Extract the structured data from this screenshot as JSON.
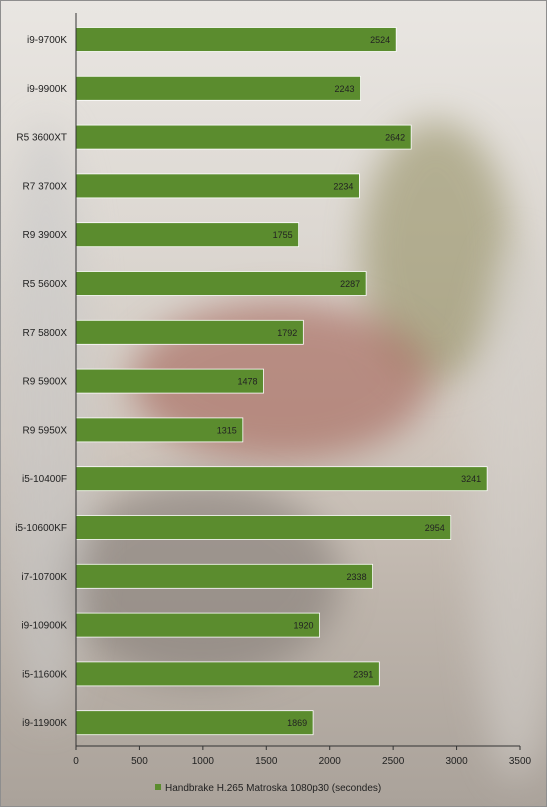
{
  "chart_data": {
    "type": "bar",
    "orientation": "horizontal",
    "categories": [
      "i9-9700K",
      "i9-9900K",
      "R5 3600XT",
      "R7 3700X",
      "R9 3900X",
      "R5 5600X",
      "R7 5800X",
      "R9 5900X",
      "R9 5950X",
      "i5-10400F",
      "i5-10600KF",
      "i7-10700K",
      "i9-10900K",
      "i5-11600K",
      "i9-11900K"
    ],
    "series": [
      {
        "name": "Handbrake H.265 Matroska 1080p30 (secondes)",
        "color": "#5b8c2e",
        "values": [
          2524,
          2243,
          2642,
          2234,
          1755,
          2287,
          1792,
          1478,
          1315,
          3241,
          2954,
          2338,
          1920,
          2391,
          1869
        ]
      }
    ],
    "xlim": [
      0,
      3500
    ],
    "xticks": [
      "0",
      "500",
      "1000",
      "1500",
      "2000",
      "2500",
      "3000",
      "3500"
    ],
    "legend_position": "bottom",
    "grid": false
  }
}
